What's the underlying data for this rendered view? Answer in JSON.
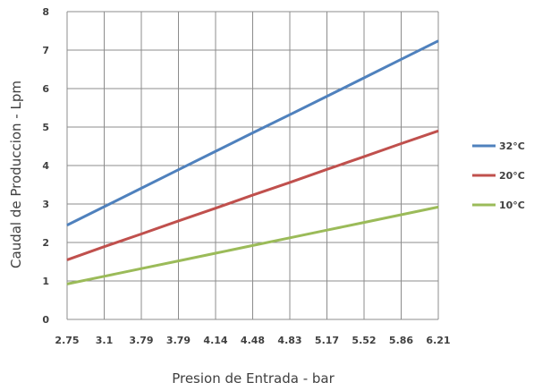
{
  "chart_data": {
    "type": "line",
    "title": "",
    "xlabel": "Presion de Entrada - bar",
    "ylabel": "Caudal de Produccion - Lpm",
    "categories": [
      "2.75",
      "3.1",
      "3.79",
      "3.79",
      "4.14",
      "4.48",
      "4.83",
      "5.17",
      "5.52",
      "5.86",
      "6.21"
    ],
    "ylim": [
      0,
      8
    ],
    "yticks": [
      "0",
      "1",
      "2",
      "3",
      "4",
      "5",
      "6",
      "7",
      "8"
    ],
    "grid": true,
    "legend_position": "right",
    "series": [
      {
        "name": "32°C",
        "color": "#4f81bd",
        "values": [
          2.45,
          2.93,
          3.41,
          3.89,
          4.37,
          4.85,
          5.32,
          5.8,
          6.28,
          6.76,
          7.24
        ]
      },
      {
        "name": "20°C",
        "color": "#c0504d",
        "values": [
          1.55,
          1.89,
          2.22,
          2.56,
          2.89,
          3.23,
          3.56,
          3.9,
          4.23,
          4.57,
          4.9
        ]
      },
      {
        "name": "10°C",
        "color": "#9bbb59",
        "values": [
          0.92,
          1.12,
          1.32,
          1.52,
          1.72,
          1.92,
          2.12,
          2.32,
          2.52,
          2.72,
          2.92
        ]
      }
    ]
  }
}
